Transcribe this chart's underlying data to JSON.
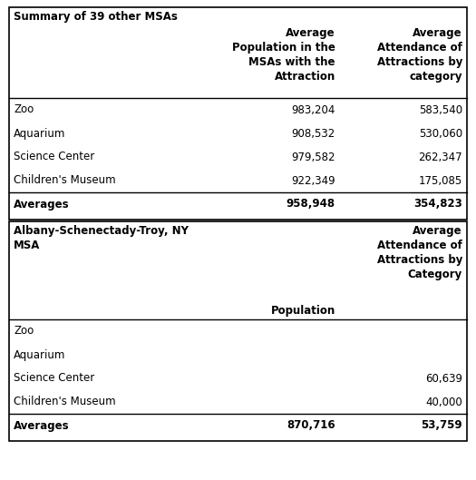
{
  "title1": "Summary of 39 other MSAs",
  "title2": "Albany-Schenectady-Troy, NY\nMSA",
  "col1_header": "Average\nPopulation in the\nMSAs with the\nAttraction",
  "col2_header": "Average\nAttendance of\nAttractions by\ncategory",
  "col2b_header": "Average\nAttendance of\nAttractions by\nCategory",
  "col1b_header": "Population",
  "section1_rows": [
    [
      "Zoo",
      "983,204",
      "583,540"
    ],
    [
      "Aquarium",
      "908,532",
      "530,060"
    ],
    [
      "Science Center",
      "979,582",
      "262,347"
    ],
    [
      "Children's Museum",
      "922,349",
      "175,085"
    ]
  ],
  "section1_avg": [
    "Averages",
    "958,948",
    "354,823"
  ],
  "section2_rows": [
    [
      "Zoo",
      "",
      ""
    ],
    [
      "Aquarium",
      "",
      ""
    ],
    [
      "Science Center",
      "",
      "60,639"
    ],
    [
      "Children's Museum",
      "",
      "40,000"
    ]
  ],
  "section2_avg": [
    "Averages",
    "870,716",
    "53,759"
  ],
  "bg_color": "#ffffff",
  "border_color": "#000000",
  "text_color": "#000000",
  "font_size": 8.5,
  "header_font_size": 8.5,
  "figw": 5.25,
  "figh": 5.29,
  "dpi": 100
}
